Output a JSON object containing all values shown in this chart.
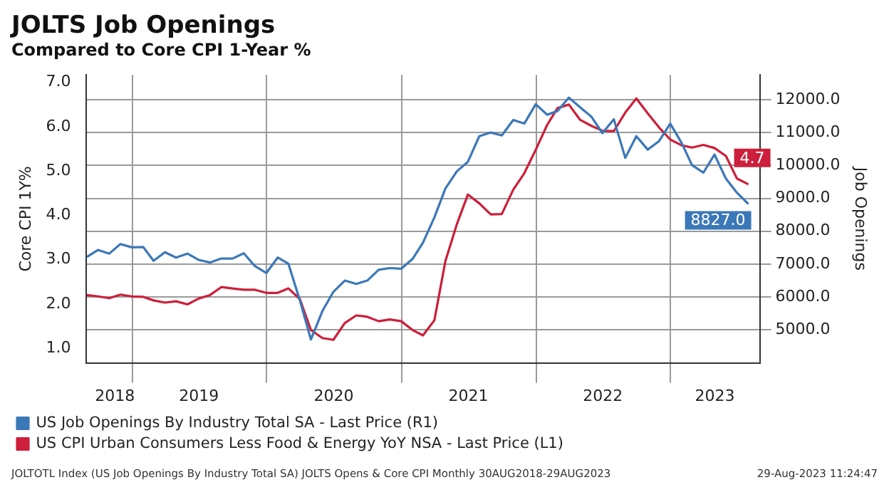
{
  "chart_data": {
    "type": "line",
    "title": "JOLTS Job Openings",
    "subtitle": "Compared to Core CPI 1-Year %",
    "ylabel": "Core CPI 1Y%",
    "y2label": "Job Openings",
    "annotations": [
      "JOLTOTL Index (US Job Openings By Industry Total SA) JOLTS Opens & Core CPI  Monthly 30AUG2018-29AUG2023",
      "29-Aug-2023 11:24:47"
    ],
    "x": [
      "2018-08-31",
      "2018-09-30",
      "2018-10-31",
      "2018-11-30",
      "2018-12-31",
      "2019-01-31",
      "2019-02-28",
      "2019-03-31",
      "2019-04-30",
      "2019-05-31",
      "2019-06-30",
      "2019-07-31",
      "2019-08-31",
      "2019-09-30",
      "2019-10-31",
      "2019-11-30",
      "2019-12-31",
      "2020-01-31",
      "2020-02-29",
      "2020-03-31",
      "2020-04-30",
      "2020-05-31",
      "2020-06-30",
      "2020-07-31",
      "2020-08-31",
      "2020-09-30",
      "2020-10-31",
      "2020-11-30",
      "2020-12-31",
      "2021-01-31",
      "2021-02-28",
      "2021-03-31",
      "2021-04-30",
      "2021-05-31",
      "2021-06-30",
      "2021-07-31",
      "2021-08-31",
      "2021-09-30",
      "2021-10-31",
      "2021-11-30",
      "2021-12-31",
      "2022-01-31",
      "2022-02-28",
      "2022-03-31",
      "2022-04-30",
      "2022-05-31",
      "2022-06-30",
      "2022-07-31",
      "2022-08-31",
      "2022-09-30",
      "2022-10-31",
      "2022-11-30",
      "2022-12-31",
      "2023-01-31",
      "2023-02-28",
      "2023-03-31",
      "2023-04-30",
      "2023-05-31",
      "2023-06-30",
      "2023-07-31"
    ],
    "xlim": [
      "2018-08-30",
      "2023-08-31"
    ],
    "xticks": [
      {
        "value": "2018-11-15",
        "label": "2018"
      },
      {
        "value": "2019-01-01",
        "label": null
      },
      {
        "value": "2019-07-01",
        "label": "2019"
      },
      {
        "value": "2020-01-01",
        "label": null
      },
      {
        "value": "2020-07-01",
        "label": "2020"
      },
      {
        "value": "2021-01-01",
        "label": null
      },
      {
        "value": "2021-07-01",
        "label": "2021"
      },
      {
        "value": "2022-01-01",
        "label": null
      },
      {
        "value": "2022-07-01",
        "label": "2022"
      },
      {
        "value": "2023-01-01",
        "label": null
      },
      {
        "value": "2023-05-01",
        "label": "2023"
      }
    ],
    "ylim": [
      0.67,
      7.17
    ],
    "yticks": [
      {
        "value": 1,
        "label": "1.0"
      },
      {
        "value": 2,
        "label": "2.0"
      },
      {
        "value": 3,
        "label": "3.0"
      },
      {
        "value": 4,
        "label": "4.0"
      },
      {
        "value": 5,
        "label": "5.0"
      },
      {
        "value": 6,
        "label": "6.0"
      },
      {
        "value": 7,
        "label": "7.0"
      }
    ],
    "y2lim": [
      4000,
      12750
    ],
    "y2ticks": [
      {
        "value": 5000,
        "label": "5000.0"
      },
      {
        "value": 6000,
        "label": "6000.0"
      },
      {
        "value": 7000,
        "label": "7000.0"
      },
      {
        "value": 8000,
        "label": "8000.0"
      },
      {
        "value": 9000,
        "label": "9000.0"
      },
      {
        "value": 10000,
        "label": "10000.0"
      },
      {
        "value": 11000,
        "label": "11000.0"
      },
      {
        "value": 12000,
        "label": "12000.0"
      }
    ],
    "grid": true,
    "legend": "bottom left",
    "marker": "none",
    "line_style": "solid",
    "series": [
      {
        "name": "US Job Openings By Industry Total SA - Last Price (R1)",
        "color": "#3b78b8",
        "axis": "y2",
        "values": [
          7220,
          7430,
          7320,
          7610,
          7510,
          7520,
          7100,
          7360,
          7200,
          7320,
          7130,
          7050,
          7170,
          7170,
          7330,
          6940,
          6730,
          7200,
          7010,
          5900,
          4710,
          5570,
          6160,
          6500,
          6400,
          6500,
          6830,
          6880,
          6860,
          7160,
          7650,
          8420,
          9300,
          9820,
          10110,
          10890,
          11000,
          10910,
          11380,
          11270,
          11860,
          11540,
          11650,
          12060,
          11770,
          11480,
          10980,
          11400,
          10230,
          10890,
          10480,
          10730,
          11270,
          10680,
          10010,
          9780,
          10330,
          9600,
          9170,
          8827
        ],
        "value_labels": [
          null,
          null,
          null,
          null,
          null,
          null,
          null,
          null,
          null,
          null,
          null,
          null,
          null,
          null,
          null,
          null,
          null,
          null,
          null,
          null,
          null,
          null,
          null,
          null,
          null,
          null,
          null,
          null,
          null,
          null,
          null,
          null,
          null,
          null,
          null,
          null,
          null,
          null,
          null,
          null,
          null,
          null,
          null,
          null,
          null,
          null,
          null,
          null,
          null,
          null,
          null,
          null,
          null,
          null,
          null,
          null,
          null,
          null,
          null,
          "8827.0"
        ]
      },
      {
        "name": "US CPI Urban Consumers Less Food & Energy YoY NSA - Last Price (L1)",
        "color": "#cc1f3b",
        "axis": "y",
        "values": [
          2.2,
          2.17,
          2.13,
          2.21,
          2.17,
          2.16,
          2.08,
          2.03,
          2.06,
          1.99,
          2.12,
          2.2,
          2.38,
          2.35,
          2.32,
          2.32,
          2.25,
          2.25,
          2.35,
          2.11,
          1.41,
          1.23,
          1.19,
          1.57,
          1.74,
          1.71,
          1.61,
          1.65,
          1.61,
          1.41,
          1.29,
          1.63,
          2.97,
          3.8,
          4.47,
          4.27,
          4.02,
          4.03,
          4.58,
          4.95,
          5.48,
          6.04,
          6.42,
          6.5,
          6.16,
          6.02,
          5.91,
          5.9,
          6.32,
          6.64,
          6.3,
          5.99,
          5.71,
          5.58,
          5.53,
          5.59,
          5.52,
          5.34,
          4.83,
          4.7
        ],
        "value_labels": [
          null,
          null,
          null,
          null,
          null,
          null,
          null,
          null,
          null,
          null,
          null,
          null,
          null,
          null,
          null,
          null,
          null,
          null,
          null,
          null,
          null,
          null,
          null,
          null,
          null,
          null,
          null,
          null,
          null,
          null,
          null,
          null,
          null,
          null,
          null,
          null,
          null,
          null,
          null,
          null,
          null,
          null,
          null,
          null,
          null,
          null,
          null,
          null,
          null,
          null,
          null,
          null,
          null,
          null,
          null,
          null,
          null,
          null,
          null,
          "4.7"
        ]
      }
    ]
  }
}
